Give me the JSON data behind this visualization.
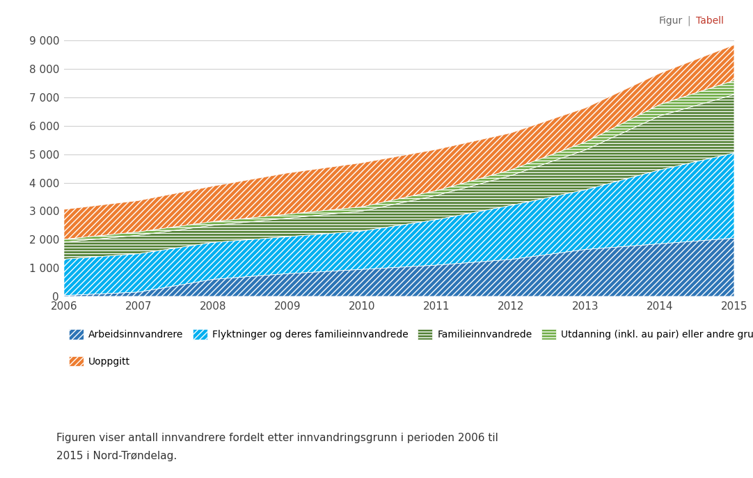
{
  "years": [
    2006,
    2007,
    2008,
    2009,
    2010,
    2011,
    2012,
    2013,
    2014,
    2015
  ],
  "arbeidsinnvandrere": [
    30,
    150,
    600,
    800,
    950,
    1100,
    1300,
    1650,
    1850,
    2050
  ],
  "flyktninger": [
    1280,
    1350,
    1300,
    1300,
    1350,
    1600,
    1900,
    2100,
    2600,
    3000
  ],
  "familieinnvandrede": [
    600,
    650,
    600,
    650,
    700,
    850,
    1050,
    1400,
    1900,
    2050
  ],
  "utdanning": [
    100,
    120,
    130,
    140,
    150,
    170,
    200,
    280,
    400,
    500
  ],
  "uoppgitt": [
    1050,
    1100,
    1250,
    1450,
    1550,
    1450,
    1300,
    1200,
    1100,
    1250
  ],
  "colors": {
    "arbeidsinnvandrere": "#2e75b6",
    "flyktninger": "#00b0f0",
    "familieinnvandrede": "#538135",
    "utdanning": "#70ad47",
    "uoppgitt": "#ed7d31"
  },
  "legend_labels": [
    "Arbeidsinnvandrere",
    "Flyktninger og deres familieinnvandrede",
    "Familieinnvandrede",
    "Utdanning (inkl. au pair) eller andre grunner",
    "Uoppgitt"
  ],
  "ylim": [
    0,
    9000
  ],
  "yticks": [
    0,
    1000,
    2000,
    3000,
    4000,
    5000,
    6000,
    7000,
    8000,
    9000
  ],
  "caption_line1": "Figuren viser antall innvandrere fordelt etter innvandringsgrunn i perioden 2006 til",
  "caption_line2": "2015 i Nord-Trøndelag.",
  "background_color": "#ffffff",
  "fontsize_axis": 11,
  "fontsize_legend": 10,
  "fontsize_caption": 11
}
